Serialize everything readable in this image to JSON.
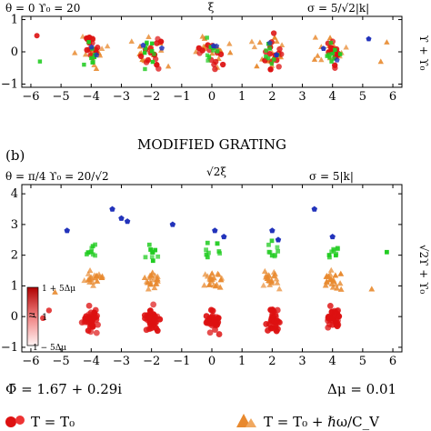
{
  "chart_data": [
    {
      "type": "scatter",
      "panel_label": "",
      "header": "",
      "params_left": "θ = 0   ϒ₀ = 20",
      "xlabel": "ξ",
      "params_right": "σ = 5/√2|k|",
      "ylabel": "ϒ + ϒ₀",
      "xlim": [
        -6.3,
        6.3
      ],
      "ylim": [
        -1.1,
        1.1
      ],
      "xticks": [
        "−6",
        "−5",
        "−4",
        "−3",
        "−2",
        "−1",
        "0",
        "1",
        "2",
        "3",
        "4",
        "5",
        "6"
      ],
      "yticks": [
        "1",
        "0",
        "−1"
      ],
      "cluster_centers": [
        -4,
        -2,
        0,
        2,
        4
      ]
    },
    {
      "type": "scatter",
      "panel_label": "(b)",
      "header": "MODIFIED GRATING",
      "params_left": "θ = π/4   ϒ₀ = 20/√2",
      "xlabel": "√2ξ",
      "params_right": "σ = 5|k|",
      "ylabel": "√2ϒ + ϒ₀",
      "xlim": [
        -6.3,
        6.3
      ],
      "ylim": [
        -1.15,
        4.3
      ],
      "xticks": [
        "−6",
        "−5",
        "−4",
        "−3",
        "−2",
        "−1",
        "0",
        "1",
        "2",
        "3",
        "4",
        "5",
        "6"
      ],
      "yticks": [
        "4",
        "3",
        "2",
        "1",
        "0",
        "−1"
      ],
      "cluster_centers": [
        -4,
        -2,
        0,
        2,
        4
      ],
      "colorbar": {
        "symbol": "μ",
        "top": "1 + 5Δμ",
        "middle": "1",
        "bottom": "1 − 5Δμ"
      }
    }
  ],
  "summary": {
    "phi": "Φ̄ = 1.67 + 0.29i",
    "delta_mu": "Δμ = 0.01"
  },
  "legend": [
    {
      "marker": "red-sphere",
      "text": "T  =  T₀"
    },
    {
      "marker": "orange-pyramid",
      "text": "T  =  T₀ + ℏω/C_V"
    }
  ],
  "colors": {
    "red": "#dd1111",
    "orange": "#e8892e",
    "green": "#22cc22",
    "blue": "#2233bb",
    "axis": "#000000"
  }
}
